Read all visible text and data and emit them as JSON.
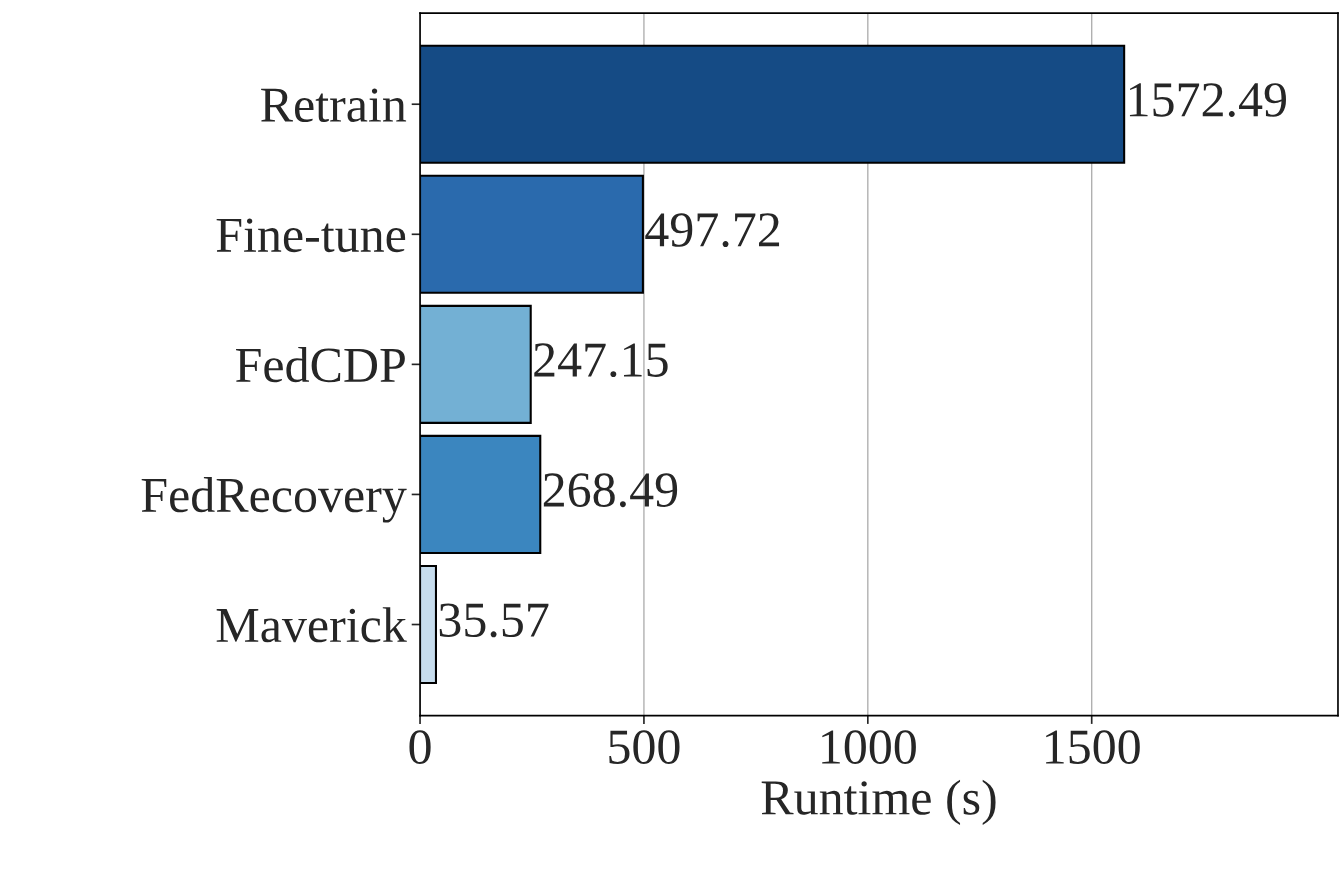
{
  "chart_data": {
    "type": "bar",
    "orientation": "horizontal",
    "xlabel": "Runtime (s)",
    "categories": [
      "Retrain",
      "Fine-tune",
      "FedCDP",
      "FedRecovery",
      "Maverick"
    ],
    "values": [
      1572.49,
      497.72,
      247.15,
      268.49,
      35.57
    ],
    "colors": [
      "#154b85",
      "#2a6aad",
      "#73b0d4",
      "#3b86bf",
      "#c6dced"
    ],
    "xlim": [
      0,
      2050
    ],
    "xticks": [
      0,
      500,
      1000,
      1500
    ],
    "grid": "x",
    "data_labels": true,
    "legend": false
  }
}
